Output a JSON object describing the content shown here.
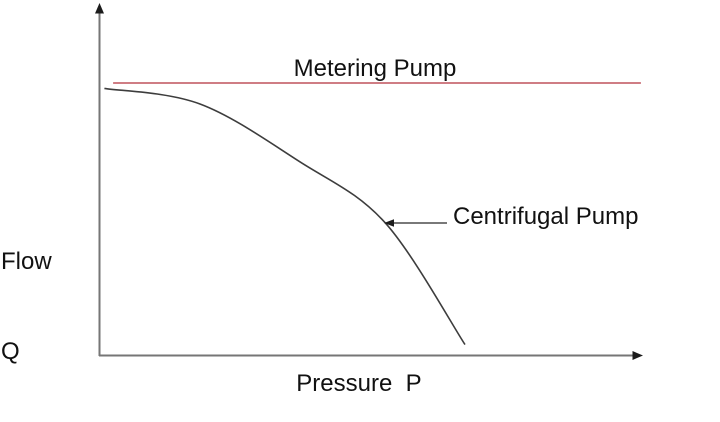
{
  "page": {
    "background": "#ffffff"
  },
  "labels": {
    "metering": "Metering Pump",
    "centrifugal": "Centrifugal Pump",
    "flow_line1": "Flow",
    "flow_line2": "Q",
    "pressure": "Pressure  P"
  },
  "colors": {
    "text": "#111111",
    "axis": "#767676",
    "arrowhead": "#1c1c1c",
    "metering_line": "#bf525b",
    "centrifugal_curve": "#3d3d3d",
    "annotation_arrow": "#4d4d4d"
  },
  "chart_data": {
    "type": "line",
    "title": "",
    "xlabel": "Pressure P",
    "ylabel": "Flow Q",
    "x_axis": {
      "label": "Pressure  P",
      "ticks": [],
      "range_normalized": [
        0,
        1
      ]
    },
    "y_axis": {
      "label": "Flow Q",
      "ticks": [],
      "range_normalized": [
        0,
        1
      ]
    },
    "grid": false,
    "legend": "inline text annotations (no legend box)",
    "series": [
      {
        "name": "Metering Pump",
        "color": "#bf525b",
        "shape": "horizontal straight line - constant flow regardless of pressure",
        "points": [
          {
            "p": 0.026,
            "q": 1.0
          },
          {
            "p": 0.998,
            "q": 1.0
          }
        ]
      },
      {
        "name": "Centrifugal Pump",
        "color": "#3d3d3d",
        "shape": "concave decreasing curve - flow falls off steeply as pressure rises",
        "points": [
          {
            "p": 0.01,
            "q": 0.98
          },
          {
            "p": 0.186,
            "q": 0.923
          },
          {
            "p": 0.37,
            "q": 0.711
          },
          {
            "p": 0.527,
            "q": 0.487
          },
          {
            "p": 0.674,
            "q": 0.04
          }
        ]
      }
    ],
    "annotations": [
      {
        "text": "Metering Pump",
        "target": "metering line",
        "style": "label centered above the red line"
      },
      {
        "text": "Centrifugal Pump",
        "target": "curve",
        "style": "label with left-pointing arrow touching the curve"
      }
    ]
  }
}
